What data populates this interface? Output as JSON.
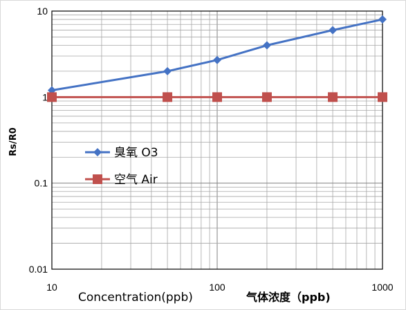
{
  "chart_data": {
    "type": "line",
    "x_scale": "log",
    "y_scale": "log",
    "xlim": [
      10,
      1000
    ],
    "ylim": [
      0.01,
      10
    ],
    "x_ticks": [
      "10",
      "100",
      "1000"
    ],
    "y_ticks": [
      "10",
      "1",
      "0.1",
      "0.01"
    ],
    "ylabel": "Rs/R0",
    "xlabel": "Concentration(ppb)",
    "xlabel_cn": "气体浓度（ppb)",
    "grid": true,
    "legend_position": "middle-left",
    "series": [
      {
        "name": "臭氧 O3",
        "color": "#4472C4",
        "marker": "diamond",
        "x": [
          10,
          50,
          100,
          200,
          500,
          1000
        ],
        "y": [
          1.2,
          2.0,
          2.7,
          4.0,
          6.0,
          8.0
        ]
      },
      {
        "name": "空气 Air",
        "color": "#C0504D",
        "marker": "square",
        "x": [
          10,
          50,
          100,
          200,
          500,
          1000
        ],
        "y": [
          1.0,
          1.0,
          1.0,
          1.0,
          1.0,
          1.0
        ]
      }
    ]
  }
}
